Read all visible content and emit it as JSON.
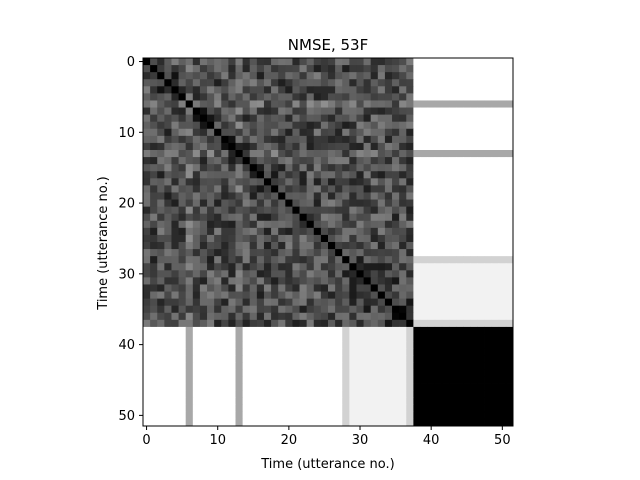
{
  "chart_data": {
    "type": "heatmap",
    "title": "NMSE, 53F",
    "xlabel": "Time (utterance no.)",
    "ylabel": "Time (utterance no.)",
    "n": 52,
    "xlim": [
      -0.5,
      51.5
    ],
    "ylim": [
      51.5,
      -0.5
    ],
    "x_ticks": [
      0,
      10,
      20,
      30,
      40,
      50
    ],
    "y_ticks": [
      0,
      10,
      20,
      30,
      40,
      50
    ],
    "colormap": "gray",
    "block_structure": {
      "dense_block_end_index": 37,
      "tail_block": "black",
      "gray_stripe_indices": [
        6,
        13
      ],
      "light_stripe_indices": [
        28,
        29,
        30,
        31,
        32,
        33,
        34,
        35,
        36,
        37
      ]
    }
  },
  "colors": {
    "background": "#ffffff",
    "axis": "#000000",
    "diagonal": "#000000"
  }
}
